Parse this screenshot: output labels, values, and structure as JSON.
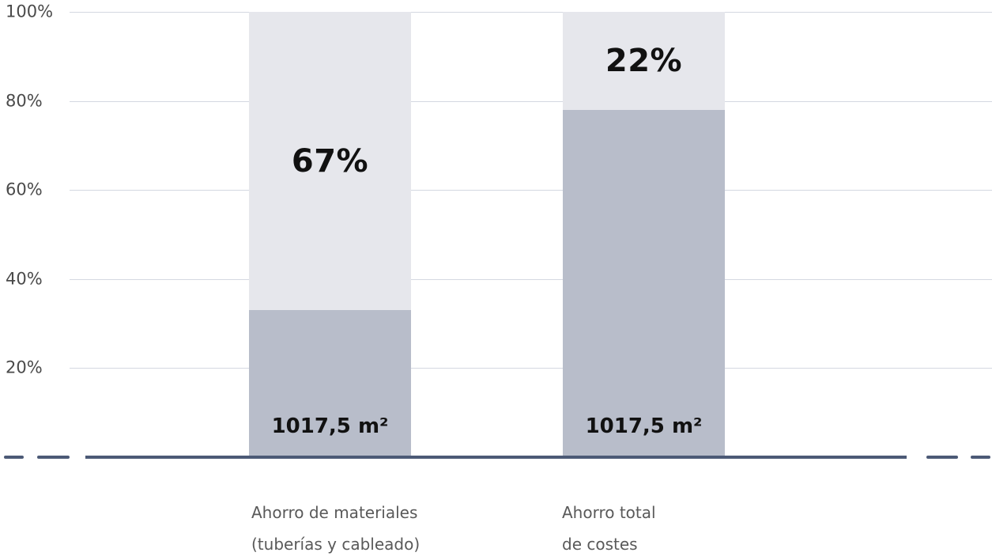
{
  "chart_data": {
    "type": "bar",
    "stacked": true,
    "title": "",
    "xlabel": "",
    "ylabel": "",
    "ylim": [
      0,
      100
    ],
    "grid": true,
    "legend": "none",
    "y_ticks": [
      {
        "value": 100,
        "label": "100%"
      },
      {
        "value": 80,
        "label": "80%"
      },
      {
        "value": 60,
        "label": "60%"
      },
      {
        "value": 40,
        "label": "40%"
      },
      {
        "value": 20,
        "label": "20%"
      }
    ],
    "categories": [
      {
        "lines": [
          "Ahorro de materiales",
          "(tuberías y cableado)"
        ]
      },
      {
        "lines": [
          "Ahorro total",
          "de costes"
        ]
      }
    ],
    "series": [
      {
        "name": "base",
        "color": "#b8bdca",
        "values": [
          33,
          78
        ],
        "labels": [
          "1017,5 m²",
          "1017,5 m²"
        ]
      },
      {
        "name": "remainder",
        "color": "#e6e7ec",
        "values": [
          67,
          22
        ],
        "labels": [
          "67%",
          "22%"
        ]
      }
    ]
  },
  "colors": {
    "axis_line": "#4c5a76",
    "gridline": "#d4d8e1",
    "tick_text": "#4a4a4a",
    "category_text": "#595959",
    "value_text": "#111111"
  }
}
